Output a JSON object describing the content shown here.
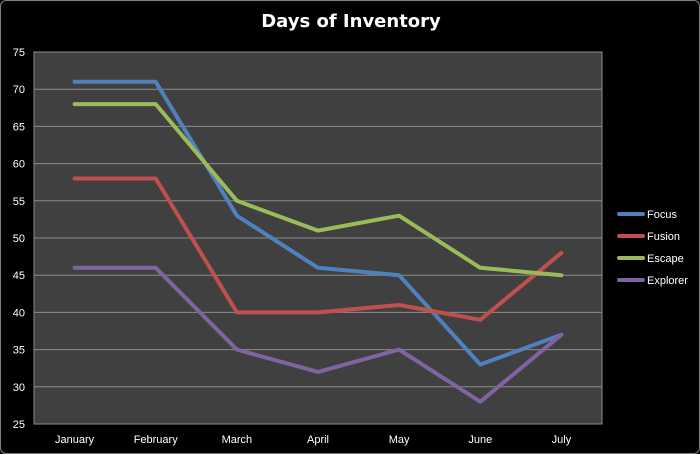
{
  "chart_data": {
    "type": "line",
    "title": "Days of Inventory",
    "categories": [
      "January",
      "February",
      "March",
      "April",
      "May",
      "June",
      "July"
    ],
    "ylim": [
      25,
      75
    ],
    "yticks": [
      25,
      30,
      35,
      40,
      45,
      50,
      55,
      60,
      65,
      70,
      75
    ],
    "grid": true,
    "legend_position": "right",
    "plot_background": "#404040",
    "series": [
      {
        "name": "Focus",
        "color": "#4f81bd",
        "values": [
          71,
          71,
          53,
          46,
          45,
          33,
          37
        ]
      },
      {
        "name": "Fusion",
        "color": "#c0504d",
        "values": [
          58,
          58,
          40,
          40,
          41,
          39,
          48
        ]
      },
      {
        "name": "Escape",
        "color": "#9bbb59",
        "values": [
          68,
          68,
          55,
          51,
          53,
          46,
          45
        ]
      },
      {
        "name": "Explorer",
        "color": "#8064a2",
        "values": [
          46,
          46,
          35,
          32,
          35,
          28,
          37
        ]
      }
    ]
  }
}
